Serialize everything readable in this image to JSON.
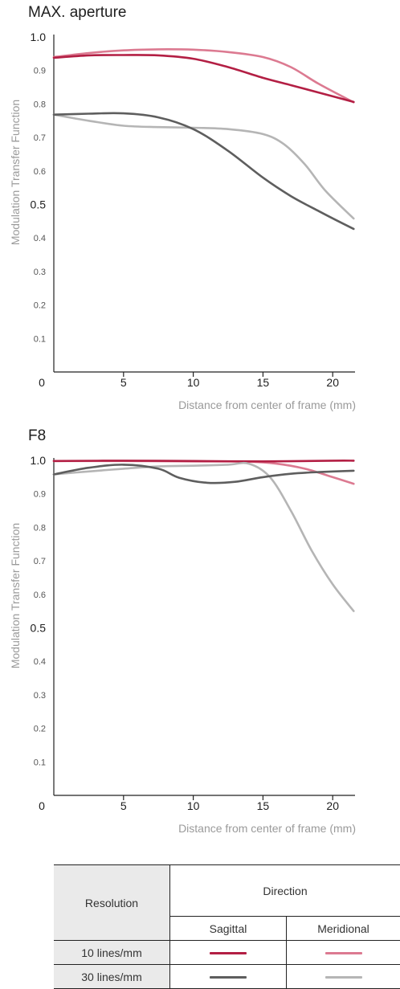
{
  "chart_data": [
    {
      "type": "line",
      "title": "MAX. aperture",
      "xlabel": "Distance from center of frame (mm)",
      "ylabel": "Modulation Transfer Function",
      "xlim": [
        0,
        21.6
      ],
      "ylim": [
        0,
        1.0
      ],
      "xticks": [
        "0",
        "5",
        "10",
        "15",
        "20"
      ],
      "yticks_major": [
        "1.0",
        "0.5"
      ],
      "yticks_minor": [
        "0.9",
        "0.8",
        "0.7",
        "0.6",
        "0.4",
        "0.3",
        "0.2",
        "0.1"
      ],
      "series": [
        {
          "resolution": "10 lines/mm",
          "direction": "Meridional",
          "color": "#dc7a91",
          "x": [
            0,
            2.5,
            5,
            7.5,
            10,
            12.5,
            15,
            17,
            19,
            21.5
          ],
          "y": [
            0.94,
            0.952,
            0.96,
            0.963,
            0.962,
            0.955,
            0.94,
            0.91,
            0.86,
            0.805
          ]
        },
        {
          "resolution": "10 lines/mm",
          "direction": "Sagittal",
          "color": "#b31f44",
          "x": [
            0,
            2.5,
            5,
            7.5,
            10,
            12.5,
            15,
            17,
            19,
            21.5
          ],
          "y": [
            0.938,
            0.945,
            0.946,
            0.945,
            0.935,
            0.91,
            0.878,
            0.856,
            0.834,
            0.806
          ]
        },
        {
          "resolution": "30 lines/mm",
          "direction": "Meridional",
          "color": "#b5b5b5",
          "x": [
            0,
            2.5,
            5,
            7.5,
            10,
            12.5,
            15,
            16.5,
            18,
            19.5,
            21.5
          ],
          "y": [
            0.768,
            0.75,
            0.735,
            0.731,
            0.729,
            0.725,
            0.71,
            0.68,
            0.62,
            0.54,
            0.458
          ]
        },
        {
          "resolution": "30 lines/mm",
          "direction": "Sagittal",
          "color": "#5e5e5e",
          "x": [
            0,
            2.5,
            5,
            7.5,
            10,
            12.5,
            15,
            17,
            19,
            21.5
          ],
          "y": [
            0.768,
            0.771,
            0.772,
            0.76,
            0.725,
            0.66,
            0.58,
            0.525,
            0.48,
            0.427
          ]
        }
      ]
    },
    {
      "type": "line",
      "title": "F8",
      "xlabel": "Distance from center of frame (mm)",
      "ylabel": "Modulation Transfer Function",
      "xlim": [
        0,
        21.6
      ],
      "ylim": [
        0,
        1.0
      ],
      "xticks": [
        "0",
        "5",
        "10",
        "15",
        "20"
      ],
      "yticks_major": [
        "1.0",
        "0.5"
      ],
      "yticks_minor": [
        "0.9",
        "0.8",
        "0.7",
        "0.6",
        "0.4",
        "0.3",
        "0.2",
        "0.1"
      ],
      "series": [
        {
          "resolution": "10 lines/mm",
          "direction": "Meridional",
          "color": "#dc7a91",
          "x": [
            0,
            5,
            10,
            14,
            16,
            18,
            20,
            21.5
          ],
          "y": [
            0.998,
            0.998,
            0.997,
            0.996,
            0.99,
            0.975,
            0.95,
            0.93
          ]
        },
        {
          "resolution": "10 lines/mm",
          "direction": "Sagittal",
          "color": "#b31f44",
          "x": [
            0,
            5,
            10,
            15,
            20,
            21.5
          ],
          "y": [
            0.998,
            0.999,
            0.998,
            0.997,
            0.999,
            0.999
          ]
        },
        {
          "resolution": "30 lines/mm",
          "direction": "Meridional",
          "color": "#b5b5b5",
          "x": [
            0,
            2.5,
            5,
            7.5,
            10,
            12.5,
            14,
            15.5,
            17,
            18.5,
            20,
            21.5
          ],
          "y": [
            0.958,
            0.967,
            0.975,
            0.982,
            0.984,
            0.987,
            0.99,
            0.95,
            0.85,
            0.73,
            0.63,
            0.55
          ]
        },
        {
          "resolution": "30 lines/mm",
          "direction": "Sagittal",
          "color": "#5e5e5e",
          "x": [
            0,
            2.5,
            5,
            7.5,
            9,
            11,
            13,
            15,
            17,
            19,
            21.5
          ],
          "y": [
            0.958,
            0.978,
            0.987,
            0.975,
            0.948,
            0.933,
            0.936,
            0.95,
            0.96,
            0.965,
            0.969
          ]
        }
      ]
    }
  ],
  "legend": {
    "resolution_header": "Resolution",
    "direction_header": "Direction",
    "sagittal": "Sagittal",
    "meridional": "Meridional",
    "rows": [
      {
        "label": "10 lines/mm",
        "sagittal_color": "#b31f44",
        "meridional_color": "#dc7a91"
      },
      {
        "label": "30 lines/mm",
        "sagittal_color": "#5e5e5e",
        "meridional_color": "#b5b5b5"
      }
    ]
  }
}
